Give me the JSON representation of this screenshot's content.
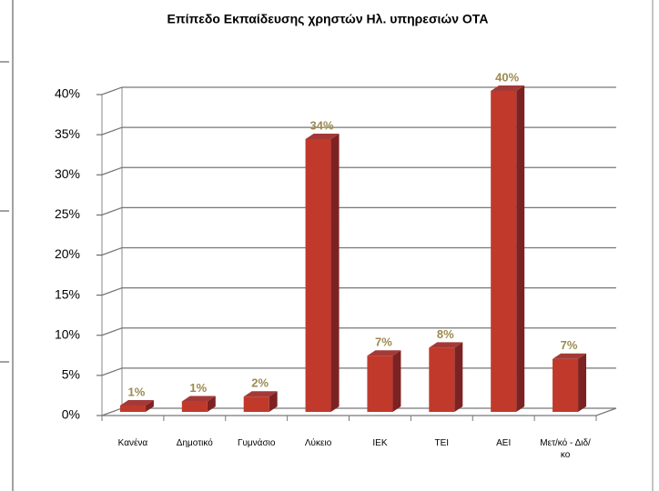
{
  "chart_data": {
    "type": "bar3d",
    "title": "Επίπεδο Εκπαίδευσης χρηστών Ηλ. υπηρεσιών ΟΤΑ",
    "categories": [
      "Κανένα",
      "Δημοτικό",
      "Γυμνάσιο",
      "Λύκειο",
      "ΙΕΚ",
      "ΤΕΙ",
      "ΑΕΙ",
      "Μετ/κό - Διδ/κο"
    ],
    "values": [
      0.8,
      1.3,
      1.9,
      34,
      7,
      8,
      40,
      6.6
    ],
    "value_labels": [
      "1%",
      "1%",
      "2%",
      "34%",
      "7%",
      "8%",
      "40%",
      "7%"
    ],
    "color": "#c0392b",
    "ylim": [
      0,
      40
    ],
    "yticks": [
      {
        "value": 0,
        "label": "0%"
      },
      {
        "value": 5,
        "label": "5%"
      },
      {
        "value": 10,
        "label": "10%"
      },
      {
        "value": 15,
        "label": "15%"
      },
      {
        "value": 20,
        "label": "20%"
      },
      {
        "value": 25,
        "label": "25%"
      },
      {
        "value": 30,
        "label": "30%"
      },
      {
        "value": 35,
        "label": "35%"
      },
      {
        "value": 40,
        "label": "40%"
      }
    ],
    "grid": true
  }
}
